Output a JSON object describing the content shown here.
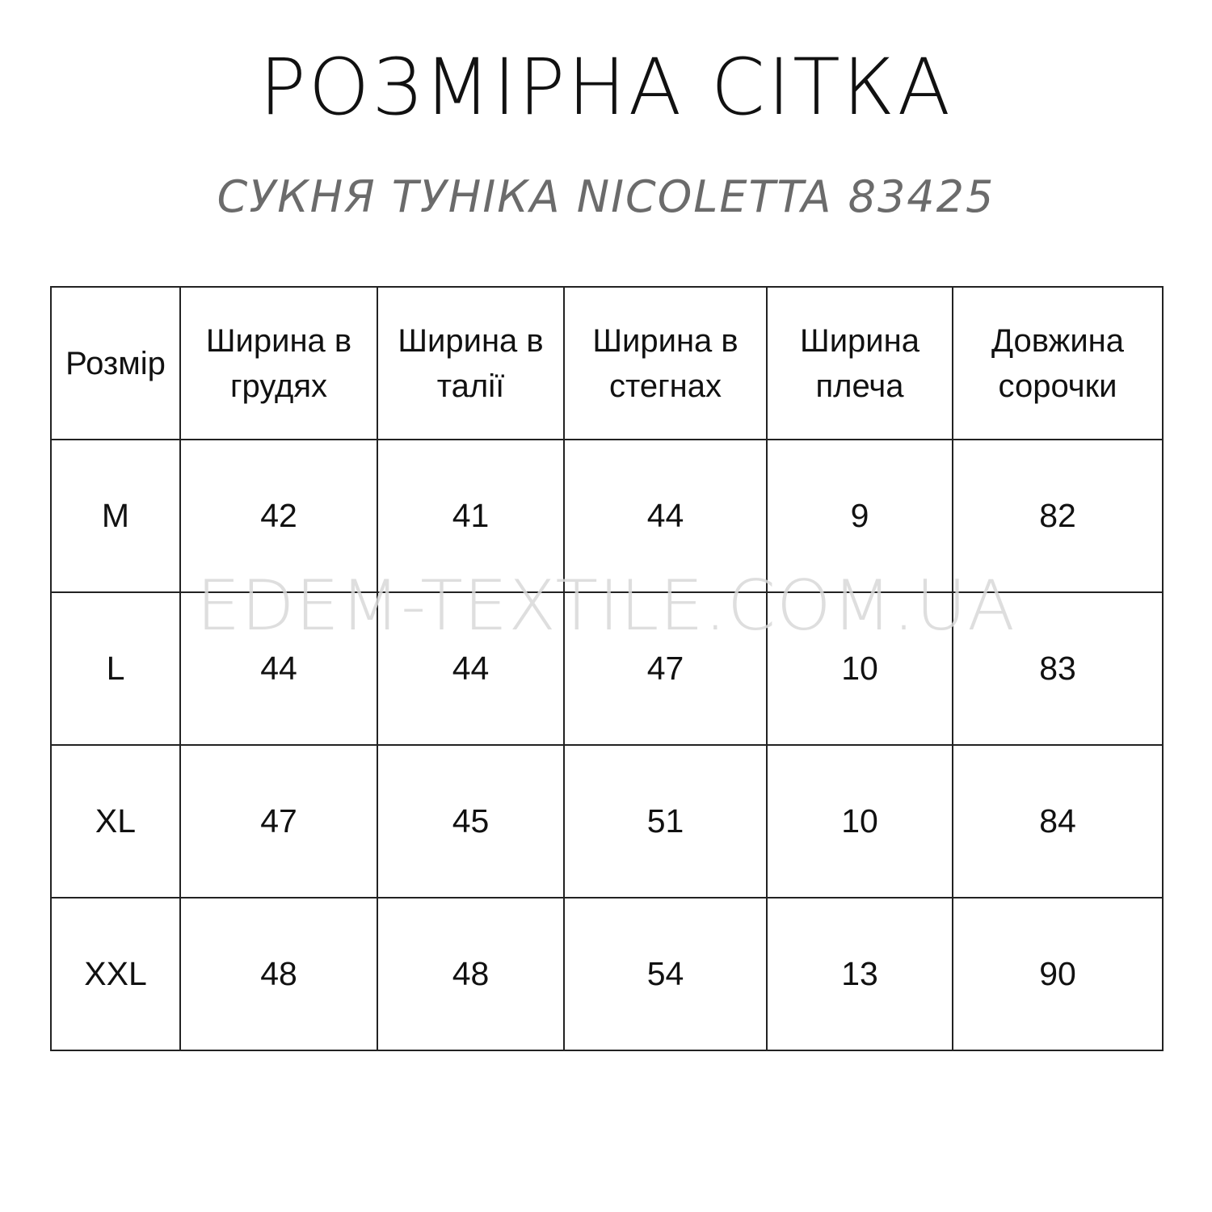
{
  "title": "РОЗМІРНА СІТКА",
  "subtitle": "СУКНЯ ТУНІКА NICOLETTA 83425",
  "watermark": "EDEM-TEXTILE.COM.UA",
  "table": {
    "headers": [
      [
        "Розмір"
      ],
      [
        "Ширина в",
        "грудях"
      ],
      [
        "Ширина в",
        "талії"
      ],
      [
        "Ширина в",
        "стегнах"
      ],
      [
        "Ширина",
        "плеча"
      ],
      [
        "Довжина",
        "сорочки"
      ]
    ],
    "rows": [
      [
        "M",
        "42",
        "41",
        "44",
        "9",
        "82"
      ],
      [
        "L",
        "44",
        "44",
        "47",
        "10",
        "83"
      ],
      [
        "XL",
        "47",
        "45",
        "51",
        "10",
        "84"
      ],
      [
        "XXL",
        "48",
        "48",
        "54",
        "13",
        "90"
      ]
    ]
  }
}
